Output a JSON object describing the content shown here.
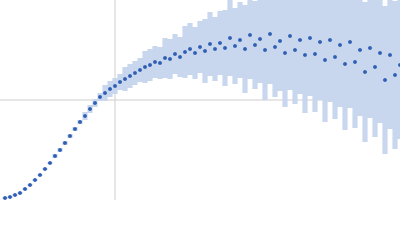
{
  "chart_data": {
    "type": "scatter",
    "x": [
      5,
      10,
      15,
      20,
      25,
      30,
      35,
      40,
      45,
      50,
      55,
      60,
      65,
      70,
      75,
      80,
      85,
      90,
      95,
      100,
      105,
      110,
      115,
      120,
      125,
      130,
      135,
      140,
      145,
      150,
      155,
      160,
      165,
      170,
      175,
      180,
      185,
      190,
      195,
      200,
      205,
      210,
      215,
      220,
      225,
      230,
      235,
      240,
      245,
      250,
      255,
      260,
      265,
      270,
      275,
      280,
      285,
      290,
      295,
      300,
      305,
      310,
      315,
      320,
      325,
      330,
      335,
      340,
      345,
      350,
      355,
      360,
      365,
      370,
      375,
      380,
      385,
      390,
      395,
      400
    ],
    "series": [
      {
        "color": "#2f5fb3",
        "error_color": "#c9d7ee",
        "values": [
          2,
          3,
          5,
          7,
          11,
          15,
          20,
          25,
          31,
          37,
          44,
          50,
          57,
          64,
          71,
          78,
          84,
          91,
          97,
          103,
          107,
          111,
          114,
          118,
          121,
          124,
          127,
          130,
          133,
          135,
          138,
          137,
          142,
          141,
          146,
          143,
          148,
          151,
          147,
          153,
          149,
          156,
          151,
          157,
          152,
          162,
          154,
          160,
          151,
          165,
          155,
          161,
          150,
          166,
          153,
          159,
          147,
          164,
          150,
          160,
          145,
          162,
          146,
          158,
          140,
          160,
          143,
          155,
          136,
          158,
          138,
          150,
          128,
          152,
          133,
          147,
          120,
          145,
          125,
          135
        ],
        "errors": [
          1,
          1,
          1,
          1,
          1,
          1,
          1,
          1,
          1,
          1,
          2,
          2,
          2,
          2,
          2,
          2,
          4,
          4,
          4,
          4,
          8,
          8,
          8,
          8,
          12,
          12,
          12,
          12,
          16,
          16,
          16,
          16,
          20,
          20,
          20,
          20,
          26,
          26,
          26,
          26,
          32,
          32,
          32,
          32,
          38,
          38,
          38,
          38,
          44,
          44,
          44,
          44,
          50,
          50,
          50,
          50,
          54,
          54,
          54,
          54,
          58,
          58,
          58,
          58,
          62,
          62,
          62,
          62,
          66,
          66,
          66,
          66,
          70,
          70,
          70,
          70,
          74,
          74,
          74,
          74
        ]
      }
    ],
    "xlim": [
      0,
      400
    ],
    "ylim": [
      0,
      200
    ],
    "xticks": [
      115
    ],
    "yticks": [
      100
    ],
    "grid": true
  }
}
